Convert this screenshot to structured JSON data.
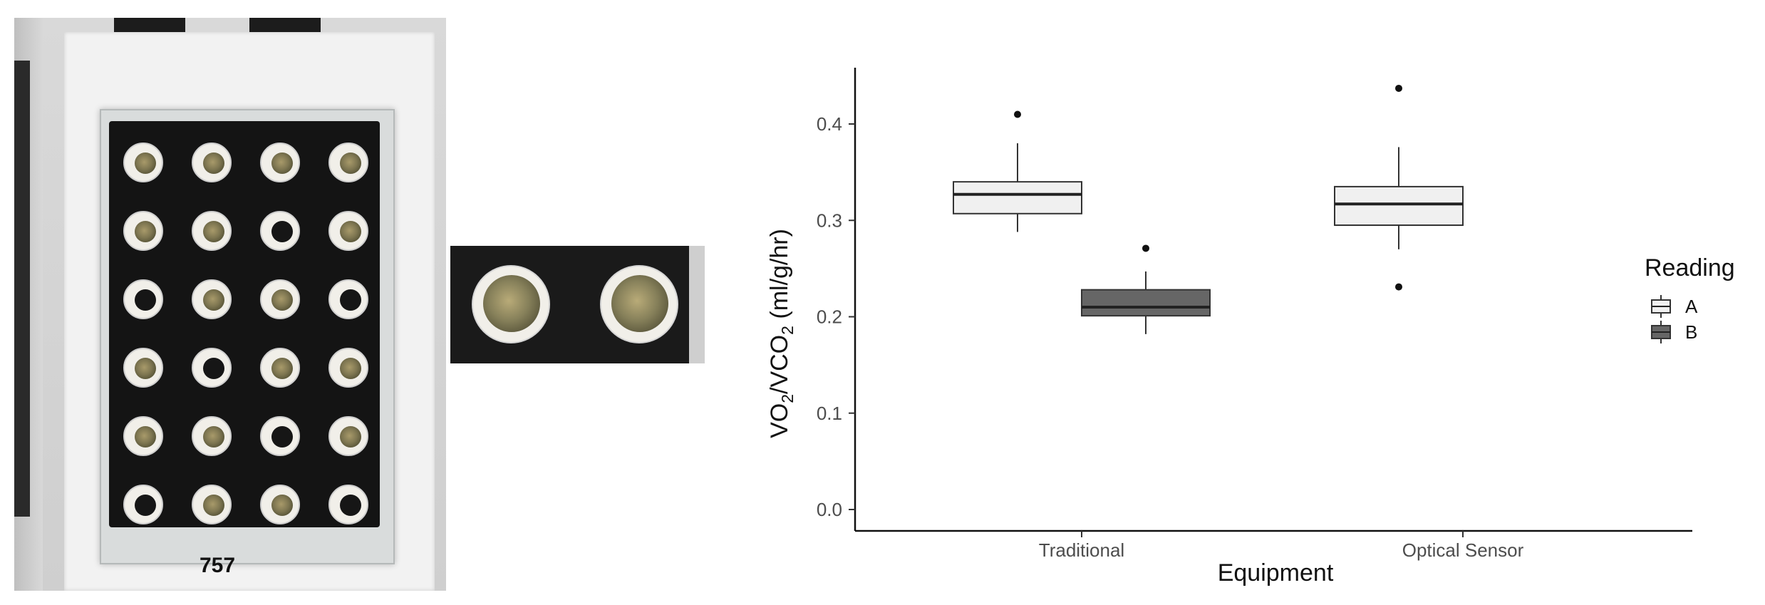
{
  "photo": {
    "plate_label": "757"
  },
  "chart_data": {
    "type": "box",
    "xlabel": "Equipment",
    "ylabel_main": "VO",
    "ylabel_sub1": "2",
    "ylabel_mid": "/VCO",
    "ylabel_sub2": "2",
    "ylabel_unit": " (ml/g/hr)",
    "ylim": [
      -0.02,
      0.46
    ],
    "yticks": [
      "0.0",
      "0.1",
      "0.2",
      "0.3",
      "0.4"
    ],
    "categories": [
      "Traditional",
      "Optical Sensor"
    ],
    "grid": false,
    "legend": {
      "title": "Reading",
      "position": "right",
      "entries": [
        {
          "label": "A",
          "fill": "#f0f0f0"
        },
        {
          "label": "B",
          "fill": "#666666"
        }
      ]
    },
    "series": [
      {
        "name": "A",
        "fill": "#f0f0f0",
        "boxes": [
          {
            "category": "Traditional",
            "whisker_low": 0.288,
            "q1": 0.307,
            "median": 0.327,
            "q3": 0.34,
            "whisker_high": 0.38,
            "outliers": [
              0.41
            ]
          },
          {
            "category": "Optical Sensor",
            "whisker_low": 0.27,
            "q1": 0.295,
            "median": 0.317,
            "q3": 0.335,
            "whisker_high": 0.376,
            "outliers": [
              0.437,
              0.231
            ]
          }
        ]
      },
      {
        "name": "B",
        "fill": "#666666",
        "boxes": [
          {
            "category": "Traditional",
            "whisker_low": 0.182,
            "q1": 0.201,
            "median": 0.21,
            "q3": 0.228,
            "whisker_high": 0.247,
            "outliers": [
              0.271
            ]
          }
        ]
      }
    ]
  }
}
